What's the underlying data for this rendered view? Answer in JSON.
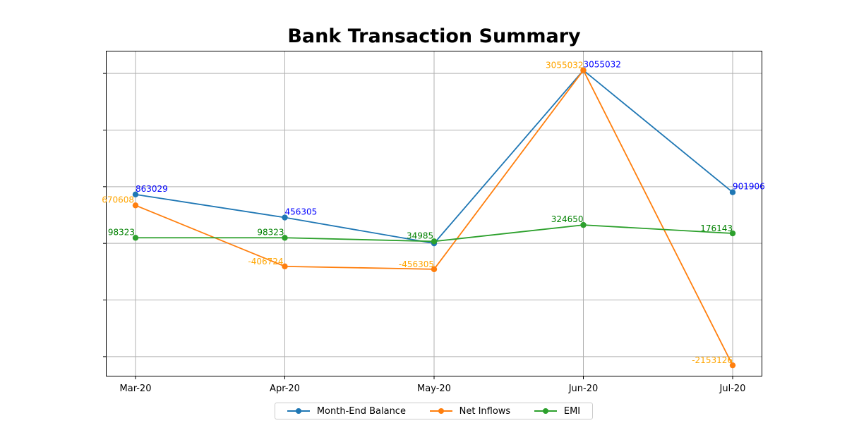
{
  "chart_data": {
    "type": "line",
    "title": "Bank Transaction Summary",
    "xlabel": "",
    "ylabel": "",
    "categories": [
      "Mar-20",
      "Apr-20",
      "May-20",
      "Jun-20",
      "Jul-20"
    ],
    "ylim": [
      -2350000,
      3400000
    ],
    "y_ticks": [
      -2000000,
      -1000000,
      0,
      1000000,
      2000000,
      3000000
    ],
    "y_tick_labels_visible": false,
    "grid": true,
    "legend_position": "bottom-center",
    "series": [
      {
        "name": "Month-End Balance",
        "color": "#1f77b4",
        "label_color": "#0000ff",
        "values": [
          863029,
          456305,
          0,
          3055032,
          901906
        ],
        "labels": [
          "863029",
          "456305",
          "",
          "3055032",
          "901906"
        ]
      },
      {
        "name": "Net Inflows",
        "color": "#ff7f0e",
        "label_color": "#ffa500",
        "values": [
          670608,
          -406724,
          -456305,
          3055032,
          -2153126
        ],
        "labels": [
          "670608",
          "-406724",
          "-456305",
          "3055032",
          "-2153126"
        ]
      },
      {
        "name": "EMI",
        "color": "#2ca02c",
        "label_color": "#008000",
        "values": [
          98323,
          98323,
          34985,
          324650,
          176143
        ],
        "labels": [
          "98323",
          "98323",
          "34985",
          "324650",
          "176143"
        ]
      }
    ]
  }
}
